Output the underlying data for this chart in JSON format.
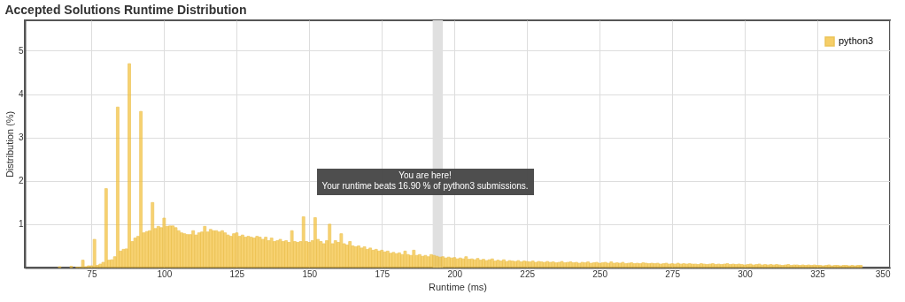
{
  "chart_data": {
    "type": "bar",
    "title": "Accepted Solutions Runtime Distribution",
    "xlabel": "Runtime (ms)",
    "ylabel": "Distribution (%)",
    "x": [
      64,
      65,
      66,
      67,
      68,
      69,
      70,
      71,
      72,
      73,
      74,
      75,
      76,
      77,
      78,
      79,
      80,
      81,
      82,
      83,
      84,
      85,
      86,
      87,
      88,
      89,
      90,
      91,
      92,
      93,
      94,
      95,
      96,
      97,
      98,
      99,
      100,
      101,
      102,
      103,
      104,
      105,
      106,
      107,
      108,
      109,
      110,
      111,
      112,
      113,
      114,
      115,
      116,
      117,
      118,
      119,
      120,
      121,
      122,
      123,
      124,
      125,
      126,
      127,
      128,
      129,
      130,
      131,
      132,
      133,
      134,
      135,
      136,
      137,
      138,
      139,
      140,
      141,
      142,
      143,
      144,
      145,
      146,
      147,
      148,
      149,
      150,
      151,
      152,
      153,
      154,
      155,
      156,
      157,
      158,
      159,
      160,
      161,
      162,
      163,
      164,
      165,
      166,
      167,
      168,
      169,
      170,
      171,
      172,
      173,
      174,
      175,
      176,
      177,
      178,
      179,
      180,
      181,
      182,
      183,
      184,
      185,
      186,
      187,
      188,
      189,
      190,
      191,
      192,
      193,
      194,
      195,
      196,
      197,
      198,
      199,
      200,
      201,
      202,
      203,
      204,
      205,
      206,
      207,
      208,
      209,
      210,
      211,
      212,
      213,
      214,
      215,
      216,
      217,
      218,
      219,
      220,
      221,
      222,
      223,
      224,
      225,
      226,
      227,
      228,
      229,
      230,
      231,
      232,
      233,
      234,
      235,
      236,
      237,
      238,
      239,
      240,
      241,
      242,
      243,
      244,
      245,
      246,
      247,
      248,
      249,
      250,
      251,
      252,
      253,
      254,
      255,
      256,
      257,
      258,
      259,
      260,
      261,
      262,
      263,
      264,
      265,
      266,
      267,
      268,
      269,
      270,
      271,
      272,
      273,
      274,
      275,
      276,
      277,
      278,
      279,
      280,
      281,
      282,
      283,
      284,
      285,
      286,
      287,
      288,
      289,
      290,
      291,
      292,
      293,
      294,
      295,
      296,
      297,
      298,
      299,
      300,
      301,
      302,
      303,
      304,
      305,
      306,
      307,
      308,
      309,
      310,
      311,
      312,
      313,
      314,
      315,
      316,
      317,
      318,
      319,
      320,
      321,
      322,
      323,
      324,
      325,
      326,
      327,
      328,
      329,
      330,
      331,
      332,
      333,
      334,
      335,
      336,
      337,
      338,
      339,
      340
    ],
    "series": [
      {
        "name": "python3",
        "color": "#f5c342",
        "values": [
          0.02,
          null,
          null,
          null,
          0.03,
          null,
          0.01,
          0.01,
          0.17,
          0.02,
          0.04,
          0.04,
          0.65,
          0.05,
          0.08,
          0.12,
          1.82,
          0.17,
          0.18,
          0.25,
          3.7,
          0.38,
          0.42,
          0.43,
          4.7,
          0.6,
          0.68,
          0.72,
          3.6,
          0.8,
          0.83,
          0.85,
          1.5,
          0.9,
          0.95,
          0.92,
          1.14,
          0.95,
          0.96,
          0.96,
          0.92,
          0.85,
          0.8,
          0.78,
          0.76,
          0.76,
          0.85,
          0.75,
          0.8,
          0.82,
          0.95,
          0.82,
          0.88,
          0.85,
          0.85,
          0.82,
          0.85,
          0.8,
          0.75,
          0.72,
          0.78,
          0.8,
          0.72,
          0.75,
          0.7,
          0.72,
          0.7,
          0.68,
          0.72,
          0.7,
          0.65,
          0.7,
          0.62,
          0.68,
          0.6,
          0.62,
          0.65,
          0.6,
          0.62,
          0.58,
          0.85,
          0.6,
          0.58,
          0.6,
          1.17,
          0.6,
          0.58,
          0.62,
          1.15,
          0.65,
          0.6,
          0.55,
          0.62,
          1.0,
          0.55,
          0.62,
          0.58,
          0.78,
          0.55,
          0.52,
          0.6,
          0.5,
          0.48,
          0.5,
          0.45,
          0.48,
          0.42,
          0.45,
          0.4,
          0.42,
          0.38,
          0.4,
          0.36,
          0.38,
          0.33,
          0.35,
          0.32,
          0.34,
          0.3,
          0.38,
          0.3,
          0.28,
          0.4,
          0.28,
          0.3,
          0.26,
          0.28,
          0.25,
          0.3,
          0.28,
          0.26,
          0.24,
          0.25,
          0.22,
          0.24,
          0.22,
          0.23,
          0.2,
          0.22,
          0.2,
          0.25,
          0.19,
          0.2,
          0.18,
          0.21,
          0.17,
          0.19,
          0.16,
          0.18,
          0.2,
          0.15,
          0.17,
          0.15,
          0.18,
          0.14,
          0.16,
          0.15,
          0.14,
          0.16,
          0.13,
          0.15,
          0.14,
          0.13,
          0.15,
          0.12,
          0.14,
          0.13,
          0.12,
          0.14,
          0.12,
          0.13,
          0.11,
          0.12,
          0.14,
          0.11,
          0.12,
          0.13,
          0.11,
          0.12,
          0.1,
          0.12,
          0.11,
          0.13,
          0.1,
          0.11,
          0.12,
          0.1,
          0.11,
          0.12,
          0.1,
          0.13,
          0.1,
          0.11,
          0.1,
          0.12,
          0.09,
          0.1,
          0.11,
          0.09,
          0.1,
          0.09,
          0.11,
          0.1,
          0.09,
          0.1,
          0.09,
          0.1,
          0.08,
          0.09,
          0.1,
          0.08,
          0.09,
          0.08,
          0.1,
          0.08,
          0.09,
          0.08,
          0.09,
          0.08,
          0.08,
          0.07,
          0.09,
          0.08,
          0.07,
          0.08,
          0.09,
          0.07,
          0.08,
          0.07,
          0.08,
          0.09,
          0.07,
          0.08,
          0.07,
          0.08,
          0.07,
          0.06,
          0.07,
          0.08,
          0.06,
          0.07,
          0.08,
          0.06,
          0.07,
          0.06,
          0.07,
          0.06,
          0.07,
          0.06,
          0.05,
          0.06,
          0.07,
          0.05,
          0.06,
          0.06,
          0.05,
          0.06,
          0.05,
          0.06,
          0.05,
          0.06,
          0.05,
          0.05,
          0.04,
          0.05,
          0.06,
          0.04,
          0.05,
          0.05,
          0.04,
          0.05,
          0.05,
          0.04,
          0.05,
          0.04,
          0.05,
          0.05
        ]
      }
    ],
    "xlim": [
      52,
      350
    ],
    "xticks": [
      75,
      100,
      125,
      150,
      175,
      200,
      225,
      250,
      275,
      300,
      325,
      350
    ],
    "ylim": [
      0,
      5.7
    ],
    "yticks": [
      1,
      2,
      3,
      4,
      5
    ],
    "grid": true,
    "legend": "top right",
    "bands": [
      {
        "axis": "x",
        "from": 192.5,
        "to": 196,
        "color": "#e0e0e0"
      }
    ],
    "annotations": [
      "You are here!\nYour runtime beats 16.90 % of python3 submissions."
    ]
  }
}
